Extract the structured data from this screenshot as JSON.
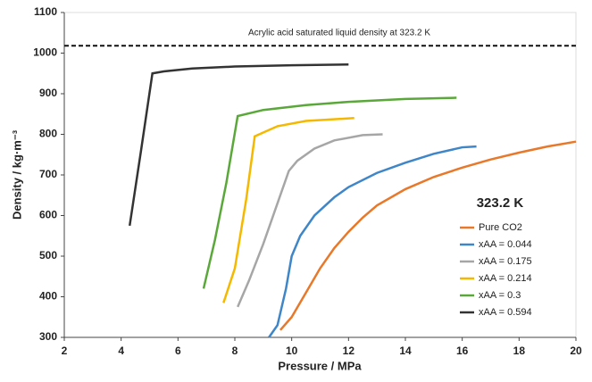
{
  "chart_data": {
    "type": "line",
    "xlabel": "Pressure / MPa",
    "ylabel": "Density / kg·m⁻³",
    "xlim": [
      2,
      20
    ],
    "ylim": [
      300,
      1100
    ],
    "xticks": [
      2,
      4,
      6,
      8,
      10,
      12,
      14,
      16,
      18,
      20
    ],
    "yticks": [
      300,
      400,
      500,
      600,
      700,
      800,
      900,
      1000,
      1100
    ],
    "reference_line": {
      "value": 1018,
      "label": "Acrylic acid saturated liquid density at 323.2 K"
    },
    "legend_title": "323.2 K",
    "legend": "right",
    "series": [
      {
        "name": "Pure CO2",
        "color": "#e8782a",
        "x": [
          9.6,
          10,
          10.5,
          11,
          11.5,
          12,
          12.5,
          13,
          14,
          15,
          16,
          17,
          18,
          19,
          20
        ],
        "values": [
          318,
          350,
          410,
          470,
          520,
          560,
          595,
          625,
          665,
          695,
          718,
          738,
          755,
          770,
          782
        ]
      },
      {
        "name": "xAA = 0.044",
        "color": "#3f86c8",
        "x": [
          9.2,
          9.5,
          9.8,
          10,
          10.3,
          10.8,
          11.5,
          12,
          13,
          14,
          15,
          16,
          16.5
        ],
        "values": [
          300,
          330,
          420,
          500,
          550,
          600,
          645,
          670,
          705,
          730,
          752,
          768,
          770
        ]
      },
      {
        "name": "xAA = 0.175",
        "color": "#a6a6a6",
        "x": [
          8.1,
          8.5,
          9,
          9.5,
          9.9,
          10.2,
          10.8,
          11.5,
          12.5,
          13.2
        ],
        "values": [
          375,
          440,
          530,
          630,
          710,
          735,
          765,
          785,
          798,
          800
        ]
      },
      {
        "name": "xAA = 0.214",
        "color": "#f5b800",
        "x": [
          7.6,
          8,
          8.4,
          8.7,
          9.5,
          10.5,
          12.2
        ],
        "values": [
          385,
          470,
          640,
          795,
          820,
          833,
          840
        ]
      },
      {
        "name": "xAA = 0.3",
        "color": "#5aa83a",
        "x": [
          6.9,
          7.3,
          7.7,
          8.1,
          9,
          10.5,
          12,
          14,
          15.8
        ],
        "values": [
          420,
          540,
          680,
          845,
          860,
          872,
          880,
          887,
          890
        ]
      },
      {
        "name": "xAA = 0.594",
        "color": "#333333",
        "x": [
          4.3,
          4.7,
          5.1,
          5.5,
          6.5,
          8,
          10,
          12
        ],
        "values": [
          575,
          760,
          950,
          955,
          962,
          967,
          970,
          972
        ]
      }
    ]
  }
}
